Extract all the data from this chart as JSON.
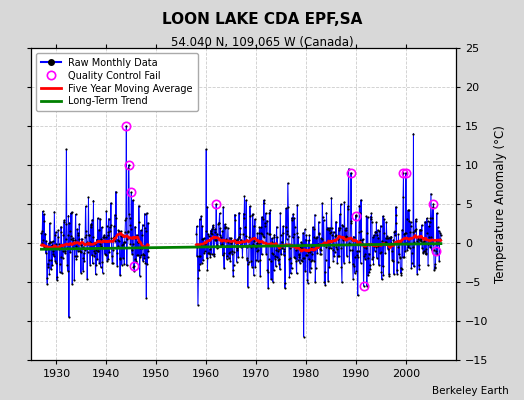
{
  "title": "LOON LAKE CDA EPF,SA",
  "subtitle": "54.040 N, 109.065 W (Canada)",
  "ylabel": "Temperature Anomaly (°C)",
  "credit": "Berkeley Earth",
  "xlim": [
    1925,
    2010
  ],
  "ylim": [
    -15,
    25
  ],
  "yticks": [
    -15,
    -10,
    -5,
    0,
    5,
    10,
    15,
    20,
    25
  ],
  "xticks": [
    1930,
    1940,
    1950,
    1960,
    1970,
    1980,
    1990,
    2000
  ],
  "plot_bg": "#ffffff",
  "fig_bg": "#d8d8d8",
  "grid_color": "#cccccc",
  "raw_color": "#0000ff",
  "raw_fill": "#9999ff",
  "dot_color": "black",
  "ma_color": "red",
  "trend_color": "green",
  "qc_color": "magenta",
  "seed": 42,
  "start_year": 1927,
  "end_year": 2007,
  "gap_start": 1948.5,
  "gap_end": 1958.0
}
